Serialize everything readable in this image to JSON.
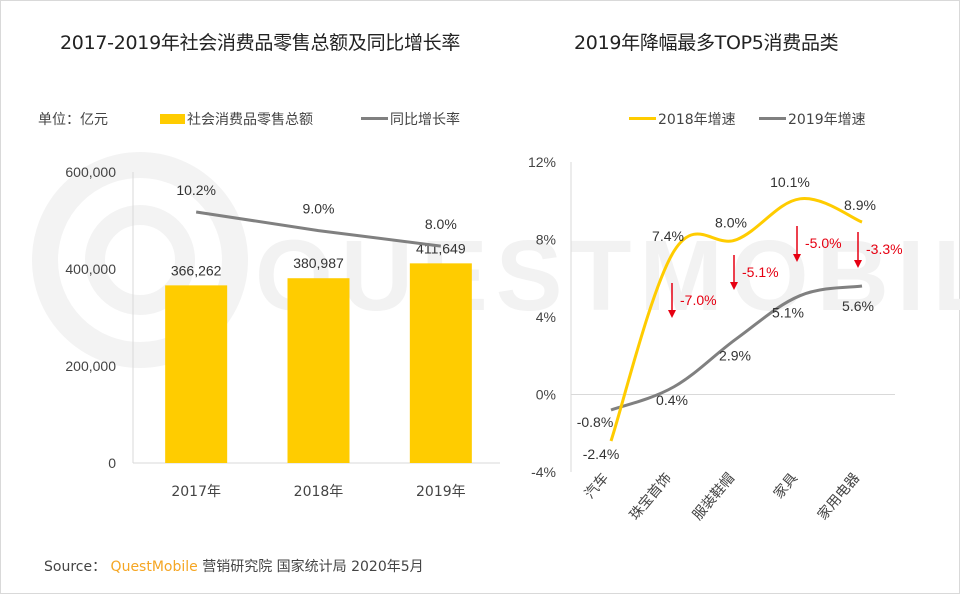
{
  "source": {
    "prefix": "Source：",
    "brand": "QuestMobile",
    "rest": " 营销研究院  国家统计局 2020年5月"
  },
  "watermark": "QUESTMOBILE",
  "colors": {
    "bar": "#ffcc00",
    "growth_line": "#808080",
    "line2018": "#ffcc00",
    "line2019": "#808080",
    "decline": "#e60012",
    "axis": "#d9d9d9"
  },
  "chart_data": [
    {
      "type": "bar",
      "title": "2017-2019年社会消费品零售总额及同比增长率",
      "unit_label": "单位：亿元",
      "categories": [
        "2017年",
        "2018年",
        "2019年"
      ],
      "series": [
        {
          "name": "社会消费品零售总额",
          "kind": "bar",
          "values": [
            366262,
            380987,
            411649
          ],
          "labels": [
            "366,262",
            "380,987",
            "411,649"
          ]
        },
        {
          "name": "同比增长率",
          "kind": "line",
          "values": [
            10.2,
            9.0,
            8.0
          ],
          "labels": [
            "10.2%",
            "9.0%",
            "8.0%"
          ]
        }
      ],
      "yticks": [
        "0",
        "200,000",
        "400,000",
        "600,000"
      ],
      "ylim": [
        0,
        600000
      ],
      "legend": "top",
      "grid": false
    },
    {
      "type": "line",
      "title": "2019年降幅最多TOP5消费品类",
      "categories": [
        "汽车",
        "珠宝首饰",
        "服装鞋帽",
        "家具",
        "家用电器"
      ],
      "series": [
        {
          "name": "2018年增速",
          "values": [
            -2.4,
            7.4,
            8.0,
            10.1,
            8.9
          ],
          "labels": [
            "-2.4%",
            "7.4%",
            "8.0%",
            "10.1%",
            "8.9%"
          ]
        },
        {
          "name": "2019年增速",
          "values": [
            -0.8,
            0.4,
            2.9,
            5.1,
            5.6
          ],
          "labels": [
            "-0.8%",
            "0.4%",
            "2.9%",
            "5.1%",
            "5.6%"
          ]
        }
      ],
      "annotations": [
        {
          "category": "珠宝首饰",
          "text": "-7.0%"
        },
        {
          "category": "服装鞋帽",
          "text": "-5.1%"
        },
        {
          "category": "家具",
          "text": "-5.0%"
        },
        {
          "category": "家用电器",
          "text": "-3.3%"
        }
      ],
      "yticks": [
        "-4%",
        "0%",
        "4%",
        "8%",
        "12%"
      ],
      "ylim": [
        -4,
        12
      ],
      "legend": "top",
      "grid": false
    }
  ]
}
